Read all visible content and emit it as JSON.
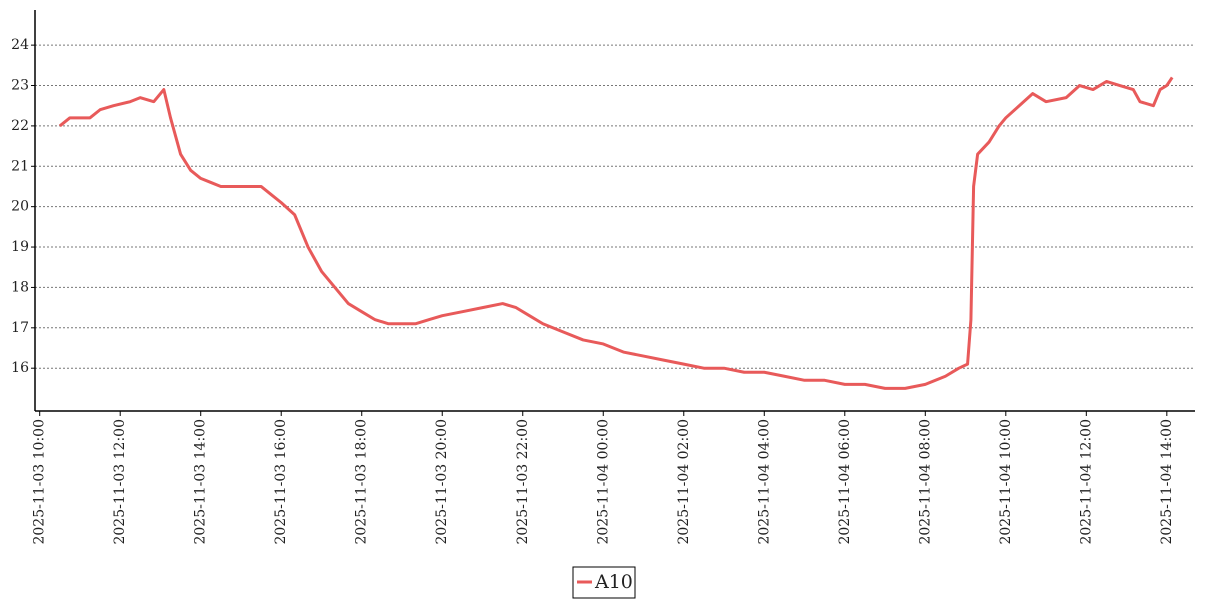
{
  "chart_data": {
    "type": "line",
    "x": [
      "2025-11-03 10:30",
      "2025-11-03 10:45",
      "2025-11-03 11:15",
      "2025-11-03 11:30",
      "2025-11-03 11:50",
      "2025-11-03 12:15",
      "2025-11-03 12:30",
      "2025-11-03 12:50",
      "2025-11-03 13:05",
      "2025-11-03 13:15",
      "2025-11-03 13:30",
      "2025-11-03 13:45",
      "2025-11-03 14:00",
      "2025-11-03 14:15",
      "2025-11-03 14:30",
      "2025-11-03 15:00",
      "2025-11-03 15:30",
      "2025-11-03 15:45",
      "2025-11-03 16:00",
      "2025-11-03 16:20",
      "2025-11-03 16:40",
      "2025-11-03 17:00",
      "2025-11-03 17:20",
      "2025-11-03 17:40",
      "2025-11-03 18:00",
      "2025-11-03 18:20",
      "2025-11-03 18:40",
      "2025-11-03 19:20",
      "2025-11-03 19:40",
      "2025-11-03 20:00",
      "2025-11-03 20:30",
      "2025-11-03 21:00",
      "2025-11-03 21:30",
      "2025-11-03 21:50",
      "2025-11-03 22:10",
      "2025-11-03 22:30",
      "2025-11-03 23:00",
      "2025-11-03 23:30",
      "2025-11-04 00:00",
      "2025-11-04 00:30",
      "2025-11-04 01:00",
      "2025-11-04 01:30",
      "2025-11-04 02:00",
      "2025-11-04 02:30",
      "2025-11-04 03:00",
      "2025-11-04 03:30",
      "2025-11-04 04:00",
      "2025-11-04 04:30",
      "2025-11-04 05:00",
      "2025-11-04 05:30",
      "2025-11-04 06:00",
      "2025-11-04 06:30",
      "2025-11-04 07:00",
      "2025-11-04 07:30",
      "2025-11-04 08:00",
      "2025-11-04 08:30",
      "2025-11-04 08:50",
      "2025-11-04 09:03",
      "2025-11-04 09:08",
      "2025-11-04 09:12",
      "2025-11-04 09:18",
      "2025-11-04 09:35",
      "2025-11-04 09:50",
      "2025-11-04 10:00",
      "2025-11-04 10:20",
      "2025-11-04 10:40",
      "2025-11-04 11:00",
      "2025-11-04 11:30",
      "2025-11-04 11:50",
      "2025-11-04 12:10",
      "2025-11-04 12:30",
      "2025-11-04 12:50",
      "2025-11-04 13:10",
      "2025-11-04 13:20",
      "2025-11-04 13:40",
      "2025-11-04 13:50",
      "2025-11-04 14:00",
      "2025-11-04 14:08"
    ],
    "series": [
      {
        "name": "A10",
        "color": "#e85a5a",
        "values": [
          22.0,
          22.2,
          22.2,
          22.4,
          22.5,
          22.6,
          22.7,
          22.6,
          22.9,
          22.2,
          21.3,
          20.9,
          20.7,
          20.6,
          20.5,
          20.5,
          20.5,
          20.3,
          20.1,
          19.8,
          19.0,
          18.4,
          18.0,
          17.6,
          17.4,
          17.2,
          17.1,
          17.1,
          17.2,
          17.3,
          17.4,
          17.5,
          17.6,
          17.5,
          17.3,
          17.1,
          16.9,
          16.7,
          16.6,
          16.4,
          16.3,
          16.2,
          16.1,
          16.0,
          16.0,
          15.9,
          15.9,
          15.8,
          15.7,
          15.7,
          15.6,
          15.6,
          15.5,
          15.5,
          15.6,
          15.8,
          16.0,
          16.1,
          17.2,
          20.5,
          21.3,
          21.6,
          22.0,
          22.2,
          22.5,
          22.8,
          22.6,
          22.7,
          23.0,
          22.9,
          23.1,
          23.0,
          22.9,
          22.6,
          22.5,
          22.9,
          23.0,
          23.2
        ]
      }
    ],
    "xlim": [
      "2025-11-03 09:53",
      "2025-11-04 14:42"
    ],
    "xticks": [
      "2025-11-03 10:00",
      "2025-11-03 12:00",
      "2025-11-03 14:00",
      "2025-11-03 16:00",
      "2025-11-03 18:00",
      "2025-11-03 20:00",
      "2025-11-03 22:00",
      "2025-11-04 00:00",
      "2025-11-04 02:00",
      "2025-11-04 04:00",
      "2025-11-04 06:00",
      "2025-11-04 08:00",
      "2025-11-04 10:00",
      "2025-11-04 12:00",
      "2025-11-04 14:00"
    ],
    "ylim": [
      14.94,
      24.87
    ],
    "yticks": [
      16,
      17,
      18,
      19,
      20,
      21,
      22,
      23,
      24
    ],
    "grid": true,
    "legend": "bottom"
  }
}
